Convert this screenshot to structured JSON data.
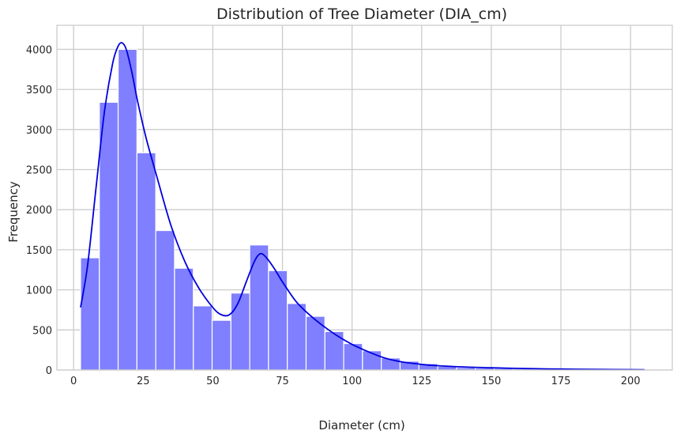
{
  "chart_data": {
    "type": "bar",
    "title": "Distribution of Tree Diameter (DIA_cm)",
    "xlabel": "Diameter (cm)",
    "ylabel": "Frequency",
    "xlim": [
      -6,
      215
    ],
    "ylim": [
      0,
      4300
    ],
    "xticks": [
      0,
      25,
      50,
      75,
      100,
      125,
      150,
      175,
      200
    ],
    "yticks": [
      0,
      500,
      1000,
      1500,
      2000,
      2500,
      3000,
      3500,
      4000
    ],
    "grid": true,
    "bins": {
      "start": 2.5,
      "end": 205,
      "counts": [
        1400,
        3340,
        4000,
        2710,
        1740,
        1270,
        800,
        620,
        960,
        1560,
        1240,
        830,
        670,
        480,
        330,
        240,
        150,
        110,
        80,
        45,
        30,
        25,
        20,
        15,
        12,
        10,
        10,
        8,
        7,
        6
      ]
    },
    "kde": {
      "x": [
        2.5,
        5,
        8,
        11,
        14,
        16,
        17.5,
        19,
        21,
        23,
        26,
        30,
        35,
        40,
        45,
        50,
        53,
        56,
        59,
        62,
        65,
        67,
        69,
        72,
        75,
        80,
        85,
        90,
        95,
        100,
        105,
        110,
        115,
        120,
        125,
        130,
        140,
        150,
        160,
        170,
        180,
        190,
        200,
        205
      ],
      "y": [
        780,
        1300,
        2250,
        3200,
        3820,
        4040,
        4080,
        3990,
        3700,
        3350,
        2900,
        2400,
        1800,
        1350,
        1020,
        780,
        690,
        690,
        830,
        1100,
        1360,
        1450,
        1410,
        1270,
        1100,
        850,
        680,
        540,
        420,
        320,
        240,
        170,
        120,
        90,
        70,
        55,
        38,
        28,
        20,
        14,
        10,
        7,
        5,
        4
      ]
    }
  }
}
